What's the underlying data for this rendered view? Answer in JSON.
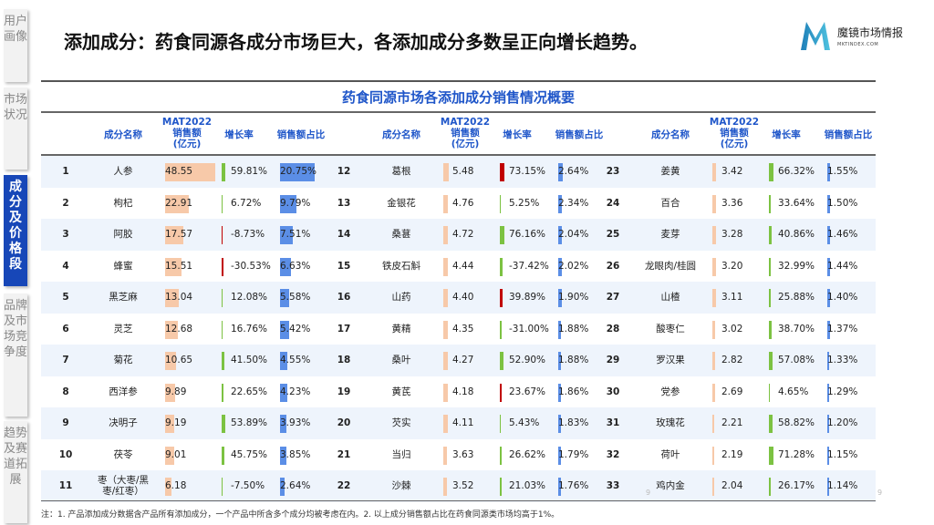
{
  "sidebar": [
    {
      "label": "用户画像",
      "active": false
    },
    {
      "label": "市场状况",
      "active": false
    },
    {
      "label": "成分及价格段",
      "active": true
    },
    {
      "label": "品牌及市场竞争度",
      "active": false
    },
    {
      "label": "趋势及赛道拓展",
      "active": false
    }
  ],
  "heading": "添加成分：药食同源各成分市场巨大，各添加成分多数呈正向增长趋势。",
  "logo": {
    "cn": "魔镜市场情报",
    "en": "MKTINDEX.COM"
  },
  "table_title": "药食同源市场各添加成分销售情况概要",
  "headers": {
    "name": "成分名称",
    "sales_l1": "MAT2022",
    "sales_l2": "销售额",
    "sales_l3": "(亿元)",
    "growth": "增长率",
    "share": "销售额占比"
  },
  "colors": {
    "sales_bar": "#f7c9a9",
    "share_bar": "#5b8ee6",
    "growth_pos": "#7cc242",
    "growth_neg": "#c00000",
    "accent": "#1f56c9"
  },
  "rows": [
    {
      "rank": "1",
      "name": "人参",
      "sales": 48.55,
      "growth": "59.81%",
      "gc": "g",
      "share": "20.75%"
    },
    {
      "rank": "2",
      "name": "枸杞",
      "sales": 22.91,
      "growth": "6.72%",
      "gc": "g",
      "share": "9.79%"
    },
    {
      "rank": "3",
      "name": "阿胶",
      "sales": 17.57,
      "growth": "-8.73%",
      "gc": "r",
      "share": "7.51%"
    },
    {
      "rank": "4",
      "name": "蜂蜜",
      "sales": 15.51,
      "growth": "-30.53%",
      "gc": "r",
      "share": "6.63%"
    },
    {
      "rank": "5",
      "name": "黑芝麻",
      "sales": 13.04,
      "growth": "12.08%",
      "gc": "g",
      "share": "5.58%"
    },
    {
      "rank": "6",
      "name": "灵芝",
      "sales": 12.68,
      "growth": "16.76%",
      "gc": "g",
      "share": "5.42%"
    },
    {
      "rank": "7",
      "name": "菊花",
      "sales": 10.65,
      "growth": "41.50%",
      "gc": "g",
      "share": "4.55%"
    },
    {
      "rank": "8",
      "name": "西洋参",
      "sales": 9.89,
      "growth": "22.65%",
      "gc": "g",
      "share": "4.23%"
    },
    {
      "rank": "9",
      "name": "决明子",
      "sales": 9.19,
      "growth": "53.89%",
      "gc": "g",
      "share": "3.93%"
    },
    {
      "rank": "10",
      "name": "茯苓",
      "sales": 9.01,
      "growth": "45.75%",
      "gc": "g",
      "share": "3.85%"
    },
    {
      "rank": "11",
      "name": "枣（大枣/黑枣/红枣）",
      "sales": 6.18,
      "growth": "-7.50%",
      "gc": "g",
      "share": "2.64%"
    },
    {
      "rank": "12",
      "name": "葛根",
      "sales": 5.48,
      "growth": "73.15%",
      "gc": "r",
      "share": "2.64%"
    },
    {
      "rank": "13",
      "name": "金银花",
      "sales": 4.76,
      "growth": "5.25%",
      "gc": "g",
      "share": "2.34%"
    },
    {
      "rank": "14",
      "name": "桑葚",
      "sales": 4.72,
      "growth": "76.16%",
      "gc": "g",
      "share": "2.04%"
    },
    {
      "rank": "15",
      "name": "铁皮石斛",
      "sales": 4.44,
      "growth": "-37.42%",
      "gc": "g",
      "share": "2.02%"
    },
    {
      "rank": "16",
      "name": "山药",
      "sales": 4.4,
      "growth": "39.89%",
      "gc": "r",
      "share": "1.90%"
    },
    {
      "rank": "17",
      "name": "黄精",
      "sales": 4.35,
      "growth": "-31.00%",
      "gc": "g",
      "share": "1.88%"
    },
    {
      "rank": "18",
      "name": "桑叶",
      "sales": 4.27,
      "growth": "52.90%",
      "gc": "g",
      "share": "1.88%"
    },
    {
      "rank": "19",
      "name": "黄芪",
      "sales": 4.18,
      "growth": "23.67%",
      "gc": "r",
      "share": "1.86%"
    },
    {
      "rank": "20",
      "name": "芡实",
      "sales": 4.11,
      "growth": "5.43%",
      "gc": "g",
      "share": "1.83%"
    },
    {
      "rank": "21",
      "name": "当归",
      "sales": 3.63,
      "growth": "26.62%",
      "gc": "g",
      "share": "1.79%"
    },
    {
      "rank": "22",
      "name": "沙棘",
      "sales": 3.52,
      "growth": "21.03%",
      "gc": "g",
      "share": "1.76%"
    },
    {
      "rank": "23",
      "name": "姜黄",
      "sales": 3.42,
      "growth": "66.32%",
      "gc": "g",
      "share": "1.55%"
    },
    {
      "rank": "24",
      "name": "百合",
      "sales": 3.36,
      "growth": "33.64%",
      "gc": "g",
      "share": "1.50%"
    },
    {
      "rank": "25",
      "name": "麦芽",
      "sales": 3.28,
      "growth": "40.86%",
      "gc": "g",
      "share": "1.46%"
    },
    {
      "rank": "26",
      "name": "龙眼肉/桂圆",
      "sales": 3.2,
      "growth": "32.99%",
      "gc": "g",
      "share": "1.44%"
    },
    {
      "rank": "27",
      "name": "山楂",
      "sales": 3.11,
      "growth": "25.88%",
      "gc": "g",
      "share": "1.40%"
    },
    {
      "rank": "28",
      "name": "酸枣仁",
      "sales": 3.02,
      "growth": "38.70%",
      "gc": "g",
      "share": "1.37%"
    },
    {
      "rank": "29",
      "name": "罗汉果",
      "sales": 2.82,
      "growth": "57.08%",
      "gc": "g",
      "share": "1.33%"
    },
    {
      "rank": "30",
      "name": "党参",
      "sales": 2.69,
      "growth": "4.65%",
      "gc": "g",
      "share": "1.29%"
    },
    {
      "rank": "31",
      "name": "玫瑰花",
      "sales": 2.21,
      "growth": "58.82%",
      "gc": "g",
      "share": "1.20%"
    },
    {
      "rank": "32",
      "name": "荷叶",
      "sales": 2.19,
      "growth": "71.28%",
      "gc": "g",
      "share": "1.15%"
    },
    {
      "rank": "33",
      "name": "鸡内金",
      "sales": 2.04,
      "growth": "26.17%",
      "gc": "g",
      "share": "1.14%"
    }
  ],
  "note": "注：1. 产品添加成分数据含产品所有添加成分，一个产品中所含多个成分均被考虑在内。2. 以上成分销售额占比在药食同源类市场均高于1%。",
  "page_number": "9"
}
